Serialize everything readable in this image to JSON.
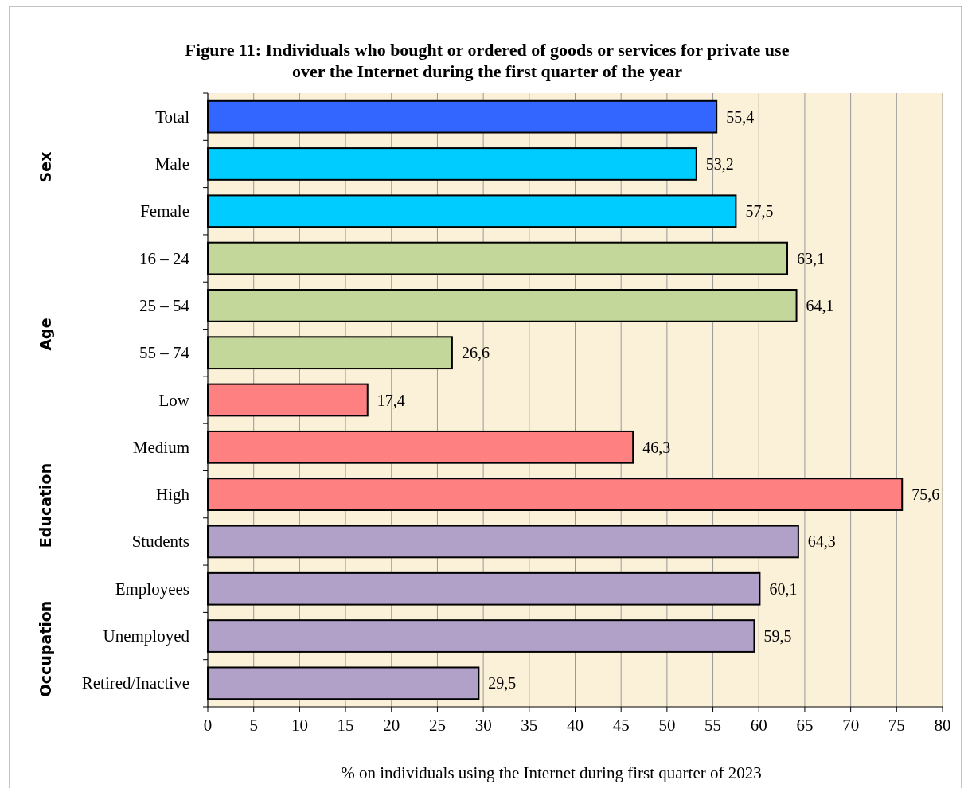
{
  "chart_data": {
    "type": "bar",
    "orientation": "horizontal",
    "title": "Figure 11: Individuals who bought or ordered of goods or services for private use\nover the Internet during the first quarter of the year",
    "xlabel": "% on individuals using the Internet during first quarter of  2023",
    "categories": [
      "Total",
      "Male",
      "Female",
      "16 – 24",
      "25 – 54",
      "55 – 74",
      "Low",
      "Medium",
      "High",
      "Students",
      "Employees",
      "Unemployed",
      "Retired/Inactive"
    ],
    "values": [
      55.4,
      53.2,
      57.5,
      63.1,
      64.1,
      26.6,
      17.4,
      46.3,
      75.6,
      64.3,
      60.1,
      59.5,
      29.5
    ],
    "value_labels": [
      "55,4",
      "53,2",
      "57,5",
      "63,1",
      "64,1",
      "26,6",
      "17,4",
      "46,3",
      "75,6",
      "64,3",
      "60,1",
      "59,5",
      "29,5"
    ],
    "colors": [
      "#3366ff",
      "#00ccff",
      "#00ccff",
      "#c4d79b",
      "#c4d79b",
      "#c4d79b",
      "#ff8080",
      "#ff8080",
      "#ff8080",
      "#b1a0c7",
      "#b1a0c7",
      "#b1a0c7",
      "#b1a0c7"
    ],
    "annotations": [
      "Sex",
      "Age",
      "Education",
      "Occupation"
    ],
    "xlim": [
      0,
      80
    ],
    "xticks": [
      0,
      5,
      10,
      15,
      20,
      25,
      30,
      35,
      40,
      45,
      50,
      55,
      60,
      65,
      70,
      75,
      80
    ],
    "grid": "x"
  }
}
